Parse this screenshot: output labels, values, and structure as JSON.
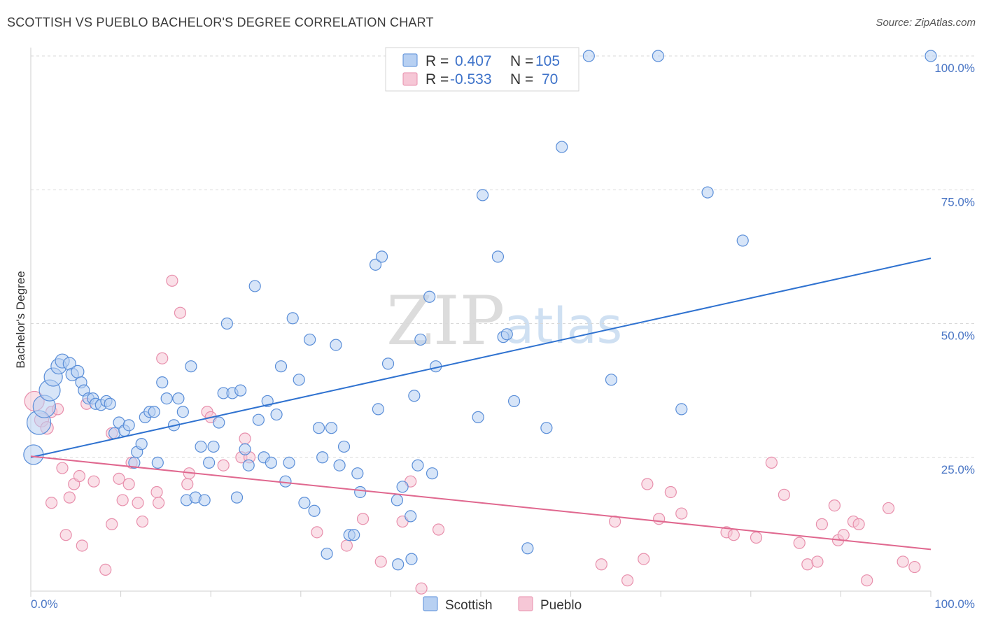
{
  "title": "SCOTTISH VS PUEBLO BACHELOR'S DEGREE CORRELATION CHART",
  "source": "Source: ZipAtlas.com",
  "watermark": {
    "zip": "ZIP",
    "atlas": "atlas"
  },
  "colors": {
    "scottish_fill": "#b7d0f2",
    "scottish_stroke": "#5a8ed8",
    "scottish_line": "#2f72d0",
    "pueblo_fill": "#f6c7d6",
    "pueblo_stroke": "#e88fac",
    "pueblo_line": "#e0688f",
    "grid": "#d9d9d9",
    "tick_label": "#4a76c5"
  },
  "legend": {
    "rows": [
      {
        "r_label": "R = ",
        "r_value": "0.407",
        "n_label": "N = ",
        "n_value": "105"
      },
      {
        "r_label": "R = ",
        "r_value": "-0.533",
        "n_label": "N = ",
        "n_value": "70"
      }
    ]
  },
  "bottom_legend": {
    "scottish": "Scottish",
    "pueblo": "Pueblo"
  },
  "chart_data": {
    "type": "scatter",
    "title": "SCOTTISH VS PUEBLO BACHELOR'S DEGREE CORRELATION CHART",
    "xlabel": "",
    "ylabel": "Bachelor's Degree",
    "xlim": [
      0,
      100
    ],
    "ylim": [
      0,
      100
    ],
    "x_tick_labels": [
      "0.0%",
      "100.0%"
    ],
    "y_tick_labels": [
      "25.0%",
      "50.0%",
      "75.0%",
      "100.0%"
    ],
    "y_tick_values": [
      25,
      50,
      75,
      100
    ],
    "grid": true,
    "legend_position": "top-center",
    "series": [
      {
        "name": "Scottish",
        "R": 0.407,
        "N": 105,
        "trend": {
          "x": [
            0,
            100
          ],
          "y": [
            25.0,
            62.2
          ]
        },
        "points": [
          {
            "x": 0.3,
            "y": 25.5,
            "s": 14
          },
          {
            "x": 0.9,
            "y": 31.5,
            "s": 17
          },
          {
            "x": 1.5,
            "y": 34.5,
            "s": 16
          },
          {
            "x": 2.1,
            "y": 37.5,
            "s": 15
          },
          {
            "x": 2.5,
            "y": 40.0,
            "s": 13
          },
          {
            "x": 3.1,
            "y": 42.0,
            "s": 11
          },
          {
            "x": 3.5,
            "y": 43.0,
            "s": 10
          },
          {
            "x": 4.3,
            "y": 42.5,
            "s": 9
          },
          {
            "x": 4.6,
            "y": 40.5,
            "s": 9
          },
          {
            "x": 5.2,
            "y": 41.0,
            "s": 9
          },
          {
            "x": 5.6,
            "y": 39.0,
            "s": 8
          },
          {
            "x": 5.9,
            "y": 37.5,
            "s": 8
          },
          {
            "x": 6.4,
            "y": 36.0,
            "s": 8
          },
          {
            "x": 6.9,
            "y": 36.0,
            "s": 8
          },
          {
            "x": 7.2,
            "y": 35.0,
            "s": 8
          },
          {
            "x": 7.8,
            "y": 34.8,
            "s": 8
          },
          {
            "x": 8.4,
            "y": 35.5,
            "s": 8
          },
          {
            "x": 8.8,
            "y": 35.0,
            "s": 8
          },
          {
            "x": 9.3,
            "y": 29.5,
            "s": 8
          },
          {
            "x": 9.8,
            "y": 31.5,
            "s": 8
          },
          {
            "x": 10.4,
            "y": 30.0,
            "s": 8
          },
          {
            "x": 10.9,
            "y": 31.0,
            "s": 8
          },
          {
            "x": 11.5,
            "y": 24.0,
            "s": 8
          },
          {
            "x": 11.8,
            "y": 26.0,
            "s": 8
          },
          {
            "x": 12.3,
            "y": 27.5,
            "s": 8
          },
          {
            "x": 12.7,
            "y": 32.5,
            "s": 8
          },
          {
            "x": 13.2,
            "y": 33.5,
            "s": 8
          },
          {
            "x": 13.7,
            "y": 33.5,
            "s": 8
          },
          {
            "x": 14.1,
            "y": 24.0,
            "s": 8
          },
          {
            "x": 14.6,
            "y": 39.0,
            "s": 8
          },
          {
            "x": 15.1,
            "y": 36.0,
            "s": 8
          },
          {
            "x": 15.9,
            "y": 31.0,
            "s": 8
          },
          {
            "x": 16.4,
            "y": 36.0,
            "s": 8
          },
          {
            "x": 16.9,
            "y": 33.5,
            "s": 8
          },
          {
            "x": 17.3,
            "y": 17.0,
            "s": 8
          },
          {
            "x": 17.8,
            "y": 42.0,
            "s": 8
          },
          {
            "x": 18.3,
            "y": 17.5,
            "s": 8
          },
          {
            "x": 18.9,
            "y": 27.0,
            "s": 8
          },
          {
            "x": 19.3,
            "y": 17.0,
            "s": 8
          },
          {
            "x": 19.8,
            "y": 24.0,
            "s": 8
          },
          {
            "x": 20.3,
            "y": 27.0,
            "s": 8
          },
          {
            "x": 20.9,
            "y": 31.5,
            "s": 8
          },
          {
            "x": 21.4,
            "y": 37.0,
            "s": 8
          },
          {
            "x": 21.8,
            "y": 50.0,
            "s": 8
          },
          {
            "x": 22.4,
            "y": 37.0,
            "s": 8
          },
          {
            "x": 22.9,
            "y": 17.5,
            "s": 8
          },
          {
            "x": 23.3,
            "y": 37.5,
            "s": 8
          },
          {
            "x": 23.8,
            "y": 26.5,
            "s": 8
          },
          {
            "x": 24.2,
            "y": 23.5,
            "s": 8
          },
          {
            "x": 24.9,
            "y": 57.0,
            "s": 8
          },
          {
            "x": 25.3,
            "y": 32.0,
            "s": 8
          },
          {
            "x": 25.9,
            "y": 25.0,
            "s": 8
          },
          {
            "x": 26.3,
            "y": 35.5,
            "s": 8
          },
          {
            "x": 26.7,
            "y": 24.0,
            "s": 8
          },
          {
            "x": 27.3,
            "y": 33.0,
            "s": 8
          },
          {
            "x": 27.8,
            "y": 42.0,
            "s": 8
          },
          {
            "x": 28.3,
            "y": 20.5,
            "s": 8
          },
          {
            "x": 28.7,
            "y": 24.0,
            "s": 8
          },
          {
            "x": 29.1,
            "y": 51.0,
            "s": 8
          },
          {
            "x": 29.8,
            "y": 39.5,
            "s": 8
          },
          {
            "x": 30.4,
            "y": 16.5,
            "s": 8
          },
          {
            "x": 31.0,
            "y": 47.0,
            "s": 8
          },
          {
            "x": 31.5,
            "y": 15.0,
            "s": 8
          },
          {
            "x": 32.0,
            "y": 30.5,
            "s": 8
          },
          {
            "x": 32.4,
            "y": 25.0,
            "s": 8
          },
          {
            "x": 32.9,
            "y": 7.0,
            "s": 8
          },
          {
            "x": 33.4,
            "y": 30.5,
            "s": 8
          },
          {
            "x": 33.9,
            "y": 46.0,
            "s": 8
          },
          {
            "x": 34.3,
            "y": 23.5,
            "s": 8
          },
          {
            "x": 34.8,
            "y": 27.0,
            "s": 8
          },
          {
            "x": 35.4,
            "y": 10.5,
            "s": 8
          },
          {
            "x": 35.9,
            "y": 10.5,
            "s": 8
          },
          {
            "x": 36.3,
            "y": 22.0,
            "s": 8
          },
          {
            "x": 36.6,
            "y": 18.5,
            "s": 8
          },
          {
            "x": 38.3,
            "y": 61.0,
            "s": 8
          },
          {
            "x": 38.6,
            "y": 34.0,
            "s": 8
          },
          {
            "x": 39.0,
            "y": 62.5,
            "s": 8
          },
          {
            "x": 39.7,
            "y": 42.5,
            "s": 8
          },
          {
            "x": 40.7,
            "y": 17.0,
            "s": 8
          },
          {
            "x": 40.8,
            "y": 5.0,
            "s": 8
          },
          {
            "x": 41.3,
            "y": 19.5,
            "s": 8
          },
          {
            "x": 42.2,
            "y": 14.0,
            "s": 8
          },
          {
            "x": 42.3,
            "y": 6.0,
            "s": 8
          },
          {
            "x": 42.6,
            "y": 36.5,
            "s": 8
          },
          {
            "x": 43.0,
            "y": 23.5,
            "s": 8
          },
          {
            "x": 43.3,
            "y": 47.0,
            "s": 8
          },
          {
            "x": 44.3,
            "y": 55.0,
            "s": 8
          },
          {
            "x": 44.6,
            "y": 22.0,
            "s": 8
          },
          {
            "x": 45.0,
            "y": 42.0,
            "s": 8
          },
          {
            "x": 49.7,
            "y": 32.5,
            "s": 8
          },
          {
            "x": 50.2,
            "y": 74.0,
            "s": 8
          },
          {
            "x": 51.9,
            "y": 62.5,
            "s": 8
          },
          {
            "x": 52.5,
            "y": 47.5,
            "s": 8
          },
          {
            "x": 52.9,
            "y": 48.0,
            "s": 8
          },
          {
            "x": 53.7,
            "y": 35.5,
            "s": 8
          },
          {
            "x": 55.2,
            "y": 8.0,
            "s": 8
          },
          {
            "x": 57.3,
            "y": 30.5,
            "s": 8
          },
          {
            "x": 59.0,
            "y": 83.0,
            "s": 8
          },
          {
            "x": 62.0,
            "y": 100.0,
            "s": 8
          },
          {
            "x": 64.5,
            "y": 39.5,
            "s": 8
          },
          {
            "x": 69.7,
            "y": 100.0,
            "s": 8
          },
          {
            "x": 72.3,
            "y": 34.0,
            "s": 8
          },
          {
            "x": 75.2,
            "y": 74.5,
            "s": 8
          },
          {
            "x": 79.1,
            "y": 65.5,
            "s": 8
          },
          {
            "x": 100.0,
            "y": 100.0,
            "s": 8
          }
        ]
      },
      {
        "name": "Pueblo",
        "R": -0.533,
        "N": 70,
        "trend": {
          "x": [
            0,
            100
          ],
          "y": [
            25.2,
            7.8
          ]
        },
        "points": [
          {
            "x": 0.4,
            "y": 35.5,
            "s": 14
          },
          {
            "x": 1.2,
            "y": 32.0,
            "s": 10
          },
          {
            "x": 1.8,
            "y": 30.5,
            "s": 9
          },
          {
            "x": 2.3,
            "y": 33.5,
            "s": 8
          },
          {
            "x": 2.3,
            "y": 16.5,
            "s": 8
          },
          {
            "x": 3.0,
            "y": 34.0,
            "s": 8
          },
          {
            "x": 3.5,
            "y": 23.0,
            "s": 8
          },
          {
            "x": 3.9,
            "y": 10.5,
            "s": 8
          },
          {
            "x": 4.3,
            "y": 17.5,
            "s": 8
          },
          {
            "x": 4.8,
            "y": 20.0,
            "s": 8
          },
          {
            "x": 5.4,
            "y": 21.5,
            "s": 8
          },
          {
            "x": 5.7,
            "y": 8.5,
            "s": 8
          },
          {
            "x": 6.2,
            "y": 35.0,
            "s": 8
          },
          {
            "x": 7.0,
            "y": 20.5,
            "s": 8
          },
          {
            "x": 8.3,
            "y": 4.0,
            "s": 8
          },
          {
            "x": 9.0,
            "y": 12.5,
            "s": 8
          },
          {
            "x": 9.0,
            "y": 29.5,
            "s": 8
          },
          {
            "x": 9.8,
            "y": 21.0,
            "s": 8
          },
          {
            "x": 10.2,
            "y": 17.0,
            "s": 8
          },
          {
            "x": 10.9,
            "y": 20.0,
            "s": 8
          },
          {
            "x": 11.2,
            "y": 24.0,
            "s": 8
          },
          {
            "x": 11.9,
            "y": 16.5,
            "s": 8
          },
          {
            "x": 12.4,
            "y": 13.0,
            "s": 8
          },
          {
            "x": 14.0,
            "y": 18.5,
            "s": 8
          },
          {
            "x": 14.2,
            "y": 16.5,
            "s": 8
          },
          {
            "x": 14.6,
            "y": 43.5,
            "s": 8
          },
          {
            "x": 15.7,
            "y": 58.0,
            "s": 8
          },
          {
            "x": 16.6,
            "y": 52.0,
            "s": 8
          },
          {
            "x": 17.4,
            "y": 20.0,
            "s": 8
          },
          {
            "x": 17.6,
            "y": 22.0,
            "s": 8
          },
          {
            "x": 19.6,
            "y": 33.5,
            "s": 8
          },
          {
            "x": 20.0,
            "y": 32.5,
            "s": 8
          },
          {
            "x": 21.4,
            "y": 23.5,
            "s": 8
          },
          {
            "x": 23.4,
            "y": 25.0,
            "s": 8
          },
          {
            "x": 23.8,
            "y": 28.5,
            "s": 8
          },
          {
            "x": 24.3,
            "y": 25.0,
            "s": 8
          },
          {
            "x": 31.8,
            "y": 11.0,
            "s": 8
          },
          {
            "x": 35.1,
            "y": 8.5,
            "s": 8
          },
          {
            "x": 36.9,
            "y": 13.5,
            "s": 8
          },
          {
            "x": 38.9,
            "y": 5.5,
            "s": 8
          },
          {
            "x": 41.3,
            "y": 13.0,
            "s": 8
          },
          {
            "x": 42.2,
            "y": 20.5,
            "s": 8
          },
          {
            "x": 43.4,
            "y": 0.5,
            "s": 8
          },
          {
            "x": 45.3,
            "y": 11.5,
            "s": 8
          },
          {
            "x": 63.4,
            "y": 5.0,
            "s": 8
          },
          {
            "x": 64.9,
            "y": 13.0,
            "s": 8
          },
          {
            "x": 66.3,
            "y": 2.0,
            "s": 8
          },
          {
            "x": 68.1,
            "y": 6.0,
            "s": 8
          },
          {
            "x": 68.5,
            "y": 20.0,
            "s": 8
          },
          {
            "x": 69.8,
            "y": 13.5,
            "s": 8
          },
          {
            "x": 71.1,
            "y": 18.5,
            "s": 8
          },
          {
            "x": 72.3,
            "y": 14.5,
            "s": 8
          },
          {
            "x": 77.3,
            "y": 11.0,
            "s": 8
          },
          {
            "x": 78.1,
            "y": 10.5,
            "s": 8
          },
          {
            "x": 80.6,
            "y": 10.0,
            "s": 8
          },
          {
            "x": 82.3,
            "y": 24.0,
            "s": 8
          },
          {
            "x": 83.7,
            "y": 18.0,
            "s": 8
          },
          {
            "x": 85.4,
            "y": 9.0,
            "s": 8
          },
          {
            "x": 86.3,
            "y": 5.0,
            "s": 8
          },
          {
            "x": 87.4,
            "y": 5.5,
            "s": 8
          },
          {
            "x": 87.9,
            "y": 12.5,
            "s": 8
          },
          {
            "x": 89.3,
            "y": 16.0,
            "s": 8
          },
          {
            "x": 89.7,
            "y": 9.5,
            "s": 8
          },
          {
            "x": 90.3,
            "y": 10.5,
            "s": 8
          },
          {
            "x": 91.4,
            "y": 13.0,
            "s": 8
          },
          {
            "x": 92.0,
            "y": 12.5,
            "s": 8
          },
          {
            "x": 92.9,
            "y": 2.0,
            "s": 8
          },
          {
            "x": 95.3,
            "y": 15.5,
            "s": 8
          },
          {
            "x": 96.9,
            "y": 5.5,
            "s": 8
          },
          {
            "x": 98.2,
            "y": 4.5,
            "s": 8
          }
        ]
      }
    ]
  }
}
